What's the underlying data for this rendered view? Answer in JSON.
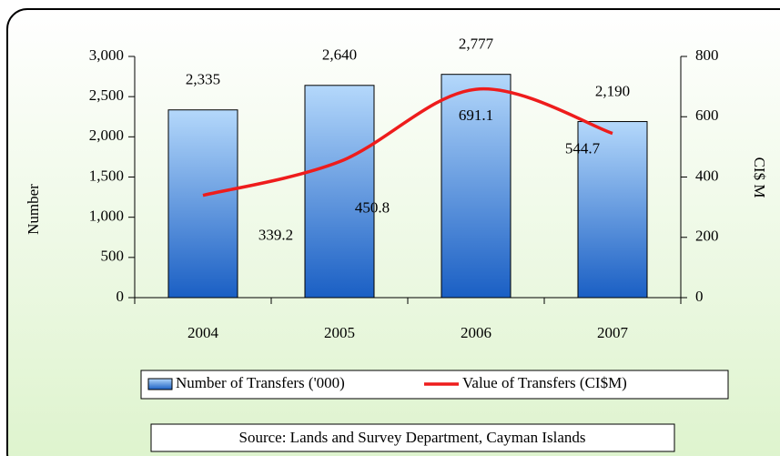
{
  "chart_data": {
    "type": "bar",
    "categories": [
      "2004",
      "2005",
      "2006",
      "2007"
    ],
    "series": [
      {
        "name": "Number of Transfers ('000)",
        "color": "#3d86dc",
        "values": [
          2335,
          2640,
          2777,
          2190
        ],
        "value_labels": [
          "2,335",
          "2,640",
          "2,777",
          "2,190"
        ]
      },
      {
        "name": "Value of Transfers (CI$M)",
        "color": "#ee1c1c",
        "type": "line",
        "axis": "y2",
        "values": [
          339.2,
          450.8,
          691.1,
          544.7
        ]
      }
    ],
    "ylabel": "Number",
    "y2label": "CI$ M",
    "ylim": [
      0,
      3000
    ],
    "yticks": [
      0,
      500,
      {
        "value": 1000,
        "label": "1,000"
      },
      {
        "value": 1500,
        "label": "1,500"
      },
      {
        "value": 2000,
        "label": "2,000"
      },
      {
        "value": 2500,
        "label": "2,500"
      },
      {
        "value": 3000,
        "label": "3,000"
      }
    ],
    "y2lim": [
      0,
      800
    ],
    "y2ticks": [
      0,
      200,
      400,
      600,
      800
    ],
    "legend": "bottom",
    "source": "Source: Lands and Survey Department, Cayman Islands"
  }
}
